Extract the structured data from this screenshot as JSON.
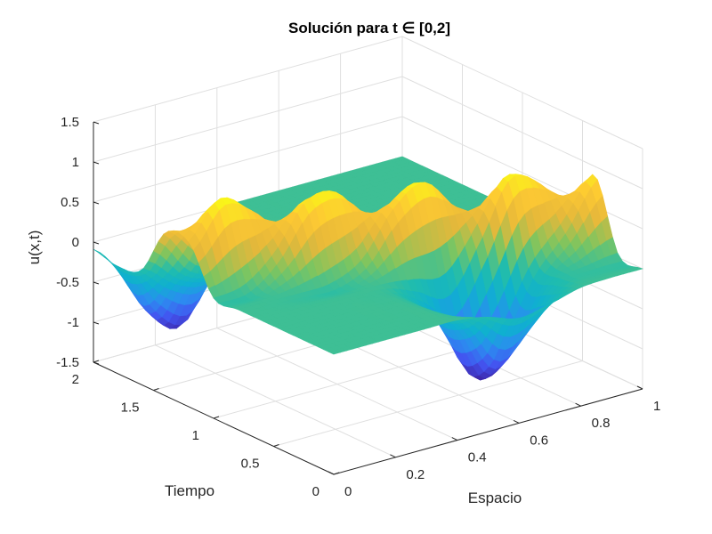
{
  "chart_data": {
    "type": "surface",
    "title": "Solución para t ∈ [0,2]",
    "xlabel": "Espacio",
    "ylabel": "Tiempo",
    "zlabel": "u(x,t)",
    "xlim": [
      0,
      1
    ],
    "ylim": [
      0,
      2
    ],
    "zlim": [
      -1.5,
      1.5
    ],
    "xticks": [
      "0",
      "0.2",
      "0.4",
      "0.6",
      "0.8",
      "1"
    ],
    "yticks": [
      "0",
      "0.5",
      "1",
      "1.5",
      "2"
    ],
    "zticks": [
      "-1.5",
      "-1",
      "-0.5",
      "0",
      "0.5",
      "1",
      "1.5"
    ],
    "grid": true,
    "colormap": "parula",
    "colormap_stops": [
      "#3e26a8",
      "#4354f0",
      "#2c8cf0",
      "#0fb0d0",
      "#20bcae",
      "#7ec55f",
      "#e6b83a",
      "#fdc933",
      "#f9fb15"
    ],
    "x": [
      0,
      0.1,
      0.2,
      0.3,
      0.4,
      0.5,
      0.6,
      0.7,
      0.8,
      0.9,
      1.0
    ],
    "t": [
      0,
      0.2,
      0.4,
      0.6,
      0.8,
      1.0,
      1.2,
      1.4,
      1.6,
      1.8,
      2.0
    ],
    "u": [
      [
        0,
        0,
        0,
        0,
        0,
        -0.07,
        -0.19,
        -0.12,
        -0.02,
        0,
        0
      ],
      [
        0,
        0,
        0,
        0,
        -0.03,
        -0.36,
        -0.95,
        -0.62,
        -0.1,
        -0.01,
        0.03
      ],
      [
        0,
        0,
        0,
        0,
        -0.05,
        -0.44,
        -1.16,
        -0.76,
        -0.07,
        0.35,
        0.89
      ],
      [
        0,
        0,
        0,
        0,
        -0.01,
        -0.12,
        -0.23,
        0.31,
        0.95,
        0.74,
        0.23
      ],
      [
        0,
        0,
        0,
        0.03,
        0.22,
        0.73,
        0.96,
        0.53,
        0.13,
        0.01,
        0
      ],
      [
        0,
        0.06,
        0.37,
        0.89,
        0.89,
        0.37,
        0.06,
        0,
        0,
        0,
        0
      ],
      [
        0.55,
        0.99,
        0.73,
        0.22,
        0.03,
        0,
        0,
        0,
        0,
        0,
        0
      ],
      [
        0.54,
        0.08,
        -0.05,
        -0.02,
        0,
        0,
        0,
        0,
        0,
        0,
        0
      ],
      [
        -0.07,
        -0.37,
        -0.49,
        -0.16,
        -0.01,
        0,
        0,
        0,
        0,
        0,
        0
      ],
      [
        -0.16,
        -0.84,
        -1.12,
        -0.37,
        -0.03,
        0,
        0,
        0,
        0,
        0,
        0
      ],
      [
        -0.09,
        -0.49,
        -0.64,
        -0.21,
        -0.02,
        0,
        0,
        0,
        0,
        0,
        0
      ]
    ]
  }
}
